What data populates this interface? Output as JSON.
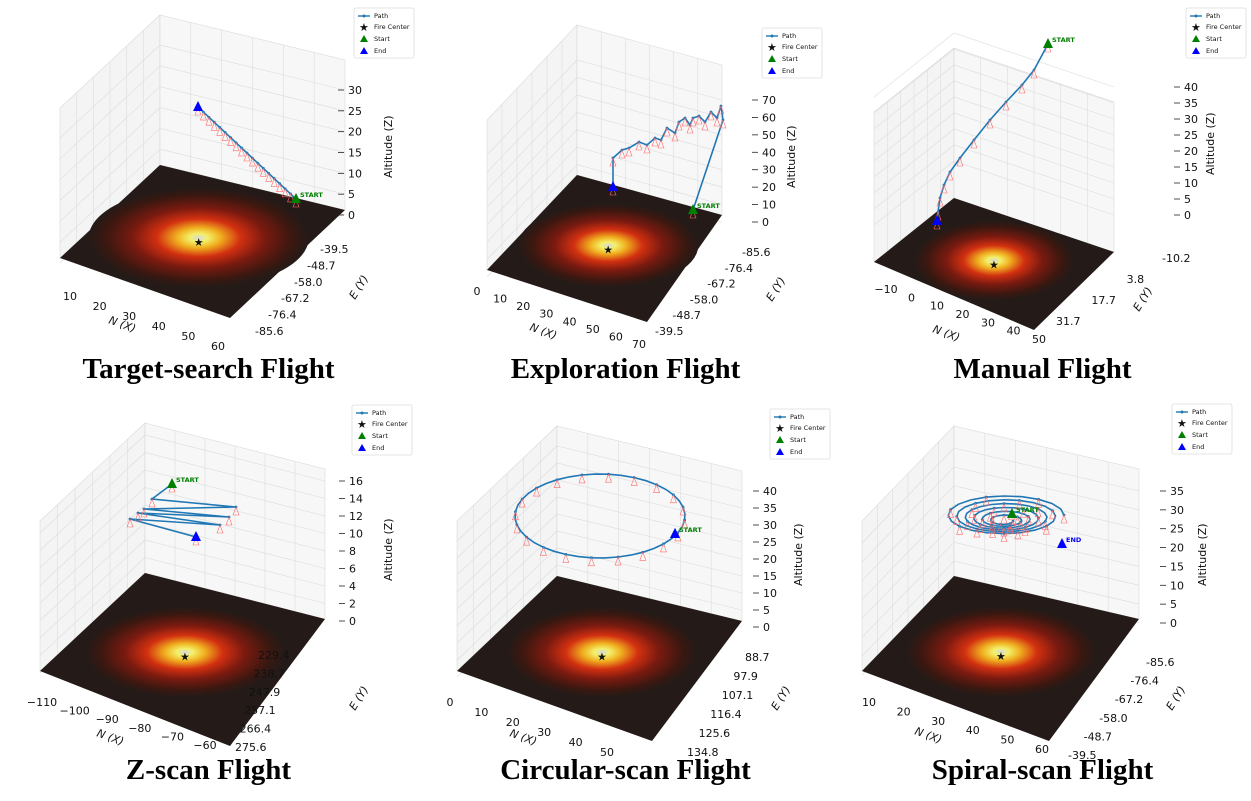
{
  "legend": {
    "path": "Path",
    "fire_center": "Fire Center",
    "start": "Start",
    "end": "End"
  },
  "colors": {
    "path": "#1f77b4",
    "fire": "#ff0000",
    "start": "#008000",
    "end": "#0000ff"
  },
  "chart_data": [
    {
      "type": "scatter",
      "title": "Target-search Flight",
      "xlabel": "N (X)",
      "ylabel": "E (Y)",
      "zlabel": "Altitude (Z)",
      "x_ticks": [
        "10",
        "20",
        "30",
        "40",
        "50",
        "60"
      ],
      "y_ticks": [
        "-85.6",
        "-76.4",
        "-67.2",
        "-58.0",
        "-48.7",
        "-39.5"
      ],
      "z_ticks": [
        "0",
        "5",
        "10",
        "15",
        "20",
        "25",
        "30"
      ],
      "path_shape": "straight descending line from end to start",
      "start_label": "START",
      "end_label": ""
    },
    {
      "type": "scatter",
      "title": "Exploration Flight",
      "xlabel": "N (X)",
      "ylabel": "E (Y)",
      "zlabel": "Altitude (Z)",
      "x_ticks": [
        "0",
        "10",
        "20",
        "30",
        "40",
        "50",
        "60",
        "70"
      ],
      "y_ticks": [
        "-85.6",
        "-76.4",
        "-67.2",
        "-58.0",
        "-48.7",
        "-39.5"
      ],
      "z_ticks": [
        "0",
        "10",
        "20",
        "30",
        "40",
        "50",
        "60",
        "70"
      ],
      "path_shape": "climb, zigzag exploration, descend",
      "start_label": "START",
      "end_label": ""
    },
    {
      "type": "scatter",
      "title": "Manual Flight",
      "xlabel": "N (X)",
      "ylabel": "E (Y)",
      "zlabel": "Altitude (Z)",
      "x_ticks": [
        "−10",
        "0",
        "10",
        "20",
        "30",
        "40",
        "50"
      ],
      "y_ticks": [
        "-10.2",
        "3.8",
        "17.7",
        "31.7"
      ],
      "z_ticks": [
        "0",
        "5",
        "10",
        "15",
        "20",
        "25",
        "30",
        "35",
        "40"
      ],
      "path_shape": "curved descent",
      "start_label": "START",
      "end_label": ""
    },
    {
      "type": "scatter",
      "title": "Z-scan Flight",
      "xlabel": "N (X)",
      "ylabel": "E (Y)",
      "zlabel": "Altitude (Z)",
      "x_ticks": [
        "−110",
        "−100",
        "−90",
        "−80",
        "−70",
        "−60"
      ],
      "y_ticks": [
        "229.4",
        "238.7",
        "247.9",
        "257.1",
        "266.4",
        "275.6"
      ],
      "z_ticks": [
        "0",
        "2",
        "4",
        "6",
        "8",
        "10",
        "12",
        "14",
        "16"
      ],
      "path_shape": "z-pattern lawnmower",
      "start_label": "START",
      "end_label": ""
    },
    {
      "type": "scatter",
      "title": "Circular-scan Flight",
      "xlabel": "N (X)",
      "ylabel": "E (Y)",
      "zlabel": "Altitude (Z)",
      "x_ticks": [
        "0",
        "10",
        "20",
        "30",
        "40",
        "50"
      ],
      "y_ticks": [
        "88.7",
        "97.9",
        "107.1",
        "116.4",
        "125.6",
        "134.8"
      ],
      "z_ticks": [
        "0",
        "5",
        "10",
        "15",
        "20",
        "25",
        "30",
        "35",
        "40"
      ],
      "path_shape": "circle",
      "start_label": "START",
      "end_label": ""
    },
    {
      "type": "scatter",
      "title": "Spiral-scan Flight",
      "xlabel": "N (X)",
      "ylabel": "E (Y)",
      "zlabel": "Altitude (Z)",
      "x_ticks": [
        "10",
        "20",
        "30",
        "40",
        "50",
        "60"
      ],
      "y_ticks": [
        "-85.6",
        "-76.4",
        "-67.2",
        "-58.0",
        "-48.7",
        "-39.5"
      ],
      "z_ticks": [
        "0",
        "5",
        "10",
        "15",
        "20",
        "25",
        "30",
        "35"
      ],
      "path_shape": "spiral",
      "start_label": "START",
      "end_label": "END"
    }
  ]
}
